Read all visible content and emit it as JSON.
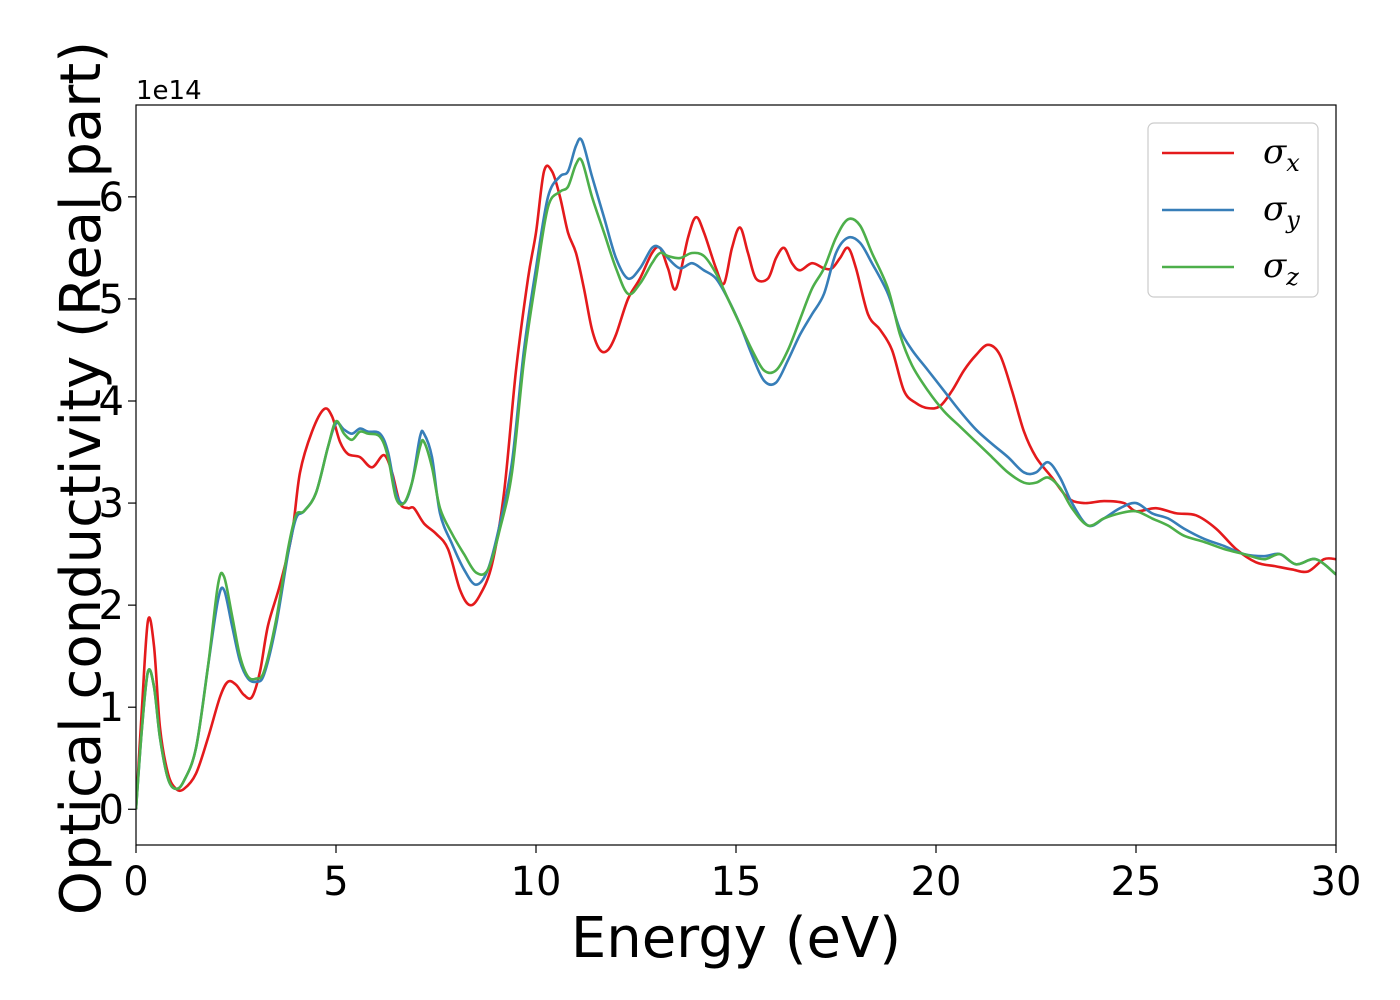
{
  "chart_data": {
    "type": "line",
    "xlabel": "Energy (eV)",
    "ylabel": "Optical conductivity (Real part)",
    "y_offset_text": "1e14",
    "xlim": [
      0,
      30
    ],
    "ylim": [
      -0.35,
      6.9
    ],
    "x_ticks": [
      0,
      5,
      10,
      15,
      20,
      25,
      30
    ],
    "y_ticks": [
      0,
      1,
      2,
      3,
      4,
      5,
      6
    ],
    "grid": false,
    "legend_position": "top-right",
    "series": [
      {
        "name": "σ_x",
        "symbol": "σ",
        "subscript": "x",
        "color": "#e41a1c",
        "points": [
          [
            0,
            0
          ],
          [
            0.15,
            1.0
          ],
          [
            0.3,
            1.85
          ],
          [
            0.45,
            1.6
          ],
          [
            0.6,
            0.8
          ],
          [
            0.8,
            0.35
          ],
          [
            1.0,
            0.2
          ],
          [
            1.2,
            0.2
          ],
          [
            1.5,
            0.35
          ],
          [
            1.8,
            0.7
          ],
          [
            2.1,
            1.1
          ],
          [
            2.3,
            1.25
          ],
          [
            2.5,
            1.22
          ],
          [
            2.7,
            1.12
          ],
          [
            2.9,
            1.1
          ],
          [
            3.1,
            1.35
          ],
          [
            3.3,
            1.8
          ],
          [
            3.6,
            2.2
          ],
          [
            3.9,
            2.7
          ],
          [
            4.1,
            3.3
          ],
          [
            4.4,
            3.7
          ],
          [
            4.7,
            3.92
          ],
          [
            4.9,
            3.85
          ],
          [
            5.1,
            3.6
          ],
          [
            5.3,
            3.48
          ],
          [
            5.6,
            3.45
          ],
          [
            5.9,
            3.35
          ],
          [
            6.2,
            3.47
          ],
          [
            6.4,
            3.3
          ],
          [
            6.6,
            3.0
          ],
          [
            6.8,
            2.95
          ],
          [
            6.95,
            2.95
          ],
          [
            7.2,
            2.8
          ],
          [
            7.5,
            2.7
          ],
          [
            7.8,
            2.55
          ],
          [
            8.1,
            2.15
          ],
          [
            8.35,
            2.0
          ],
          [
            8.6,
            2.1
          ],
          [
            8.9,
            2.4
          ],
          [
            9.2,
            3.1
          ],
          [
            9.5,
            4.3
          ],
          [
            9.8,
            5.2
          ],
          [
            10.0,
            5.65
          ],
          [
            10.2,
            6.25
          ],
          [
            10.4,
            6.25
          ],
          [
            10.6,
            6.0
          ],
          [
            10.8,
            5.65
          ],
          [
            11.0,
            5.45
          ],
          [
            11.2,
            5.1
          ],
          [
            11.4,
            4.7
          ],
          [
            11.6,
            4.5
          ],
          [
            11.8,
            4.5
          ],
          [
            12.0,
            4.65
          ],
          [
            12.3,
            5.0
          ],
          [
            12.6,
            5.2
          ],
          [
            12.9,
            5.45
          ],
          [
            13.1,
            5.5
          ],
          [
            13.3,
            5.3
          ],
          [
            13.5,
            5.1
          ],
          [
            13.8,
            5.6
          ],
          [
            14.0,
            5.8
          ],
          [
            14.2,
            5.65
          ],
          [
            14.5,
            5.3
          ],
          [
            14.7,
            5.15
          ],
          [
            14.9,
            5.5
          ],
          [
            15.1,
            5.7
          ],
          [
            15.3,
            5.45
          ],
          [
            15.5,
            5.2
          ],
          [
            15.8,
            5.2
          ],
          [
            16.0,
            5.4
          ],
          [
            16.2,
            5.5
          ],
          [
            16.4,
            5.35
          ],
          [
            16.6,
            5.28
          ],
          [
            16.9,
            5.35
          ],
          [
            17.2,
            5.3
          ],
          [
            17.4,
            5.3
          ],
          [
            17.6,
            5.4
          ],
          [
            17.8,
            5.5
          ],
          [
            18.0,
            5.3
          ],
          [
            18.3,
            4.85
          ],
          [
            18.6,
            4.7
          ],
          [
            18.9,
            4.5
          ],
          [
            19.2,
            4.1
          ],
          [
            19.5,
            3.98
          ],
          [
            19.8,
            3.93
          ],
          [
            20.1,
            3.95
          ],
          [
            20.4,
            4.1
          ],
          [
            20.7,
            4.3
          ],
          [
            21.0,
            4.45
          ],
          [
            21.3,
            4.55
          ],
          [
            21.6,
            4.45
          ],
          [
            21.9,
            4.1
          ],
          [
            22.2,
            3.7
          ],
          [
            22.5,
            3.45
          ],
          [
            22.9,
            3.25
          ],
          [
            23.3,
            3.05
          ],
          [
            23.7,
            3.0
          ],
          [
            24.2,
            3.02
          ],
          [
            24.7,
            3.0
          ],
          [
            25.0,
            2.92
          ],
          [
            25.5,
            2.95
          ],
          [
            26.0,
            2.9
          ],
          [
            26.5,
            2.88
          ],
          [
            27.0,
            2.75
          ],
          [
            27.5,
            2.55
          ],
          [
            28.0,
            2.42
          ],
          [
            28.5,
            2.38
          ],
          [
            28.9,
            2.35
          ],
          [
            29.3,
            2.33
          ],
          [
            29.7,
            2.45
          ],
          [
            30.0,
            2.45
          ]
        ]
      },
      {
        "name": "σ_y",
        "symbol": "σ",
        "subscript": "y",
        "color": "#377eb8",
        "points": [
          [
            0,
            0
          ],
          [
            0.15,
            0.8
          ],
          [
            0.3,
            1.35
          ],
          [
            0.45,
            1.2
          ],
          [
            0.6,
            0.7
          ],
          [
            0.8,
            0.3
          ],
          [
            1.0,
            0.2
          ],
          [
            1.2,
            0.28
          ],
          [
            1.5,
            0.6
          ],
          [
            1.8,
            1.4
          ],
          [
            2.05,
            2.05
          ],
          [
            2.2,
            2.15
          ],
          [
            2.4,
            1.8
          ],
          [
            2.6,
            1.45
          ],
          [
            2.8,
            1.28
          ],
          [
            3.0,
            1.25
          ],
          [
            3.2,
            1.32
          ],
          [
            3.5,
            1.8
          ],
          [
            3.8,
            2.5
          ],
          [
            4.0,
            2.85
          ],
          [
            4.2,
            2.92
          ],
          [
            4.5,
            3.1
          ],
          [
            4.8,
            3.55
          ],
          [
            5.0,
            3.78
          ],
          [
            5.2,
            3.72
          ],
          [
            5.4,
            3.68
          ],
          [
            5.6,
            3.73
          ],
          [
            5.8,
            3.7
          ],
          [
            6.1,
            3.68
          ],
          [
            6.3,
            3.5
          ],
          [
            6.5,
            3.1
          ],
          [
            6.7,
            3.0
          ],
          [
            6.9,
            3.2
          ],
          [
            7.1,
            3.65
          ],
          [
            7.2,
            3.68
          ],
          [
            7.4,
            3.45
          ],
          [
            7.6,
            2.9
          ],
          [
            7.9,
            2.6
          ],
          [
            8.2,
            2.35
          ],
          [
            8.5,
            2.2
          ],
          [
            8.8,
            2.35
          ],
          [
            9.1,
            2.8
          ],
          [
            9.4,
            3.4
          ],
          [
            9.7,
            4.5
          ],
          [
            10.0,
            5.3
          ],
          [
            10.3,
            6.0
          ],
          [
            10.6,
            6.2
          ],
          [
            10.8,
            6.25
          ],
          [
            11.0,
            6.5
          ],
          [
            11.15,
            6.55
          ],
          [
            11.4,
            6.2
          ],
          [
            11.7,
            5.8
          ],
          [
            12.0,
            5.4
          ],
          [
            12.3,
            5.2
          ],
          [
            12.6,
            5.3
          ],
          [
            12.9,
            5.5
          ],
          [
            13.1,
            5.5
          ],
          [
            13.3,
            5.4
          ],
          [
            13.6,
            5.3
          ],
          [
            13.9,
            5.35
          ],
          [
            14.2,
            5.28
          ],
          [
            14.5,
            5.2
          ],
          [
            14.8,
            5.0
          ],
          [
            15.1,
            4.75
          ],
          [
            15.4,
            4.45
          ],
          [
            15.7,
            4.2
          ],
          [
            16.0,
            4.18
          ],
          [
            16.3,
            4.4
          ],
          [
            16.6,
            4.65
          ],
          [
            16.9,
            4.85
          ],
          [
            17.2,
            5.05
          ],
          [
            17.5,
            5.45
          ],
          [
            17.8,
            5.6
          ],
          [
            18.1,
            5.55
          ],
          [
            18.4,
            5.35
          ],
          [
            18.8,
            5.05
          ],
          [
            19.1,
            4.7
          ],
          [
            19.4,
            4.5
          ],
          [
            19.8,
            4.3
          ],
          [
            20.2,
            4.1
          ],
          [
            20.6,
            3.9
          ],
          [
            21.0,
            3.72
          ],
          [
            21.4,
            3.58
          ],
          [
            21.8,
            3.45
          ],
          [
            22.2,
            3.3
          ],
          [
            22.5,
            3.3
          ],
          [
            22.8,
            3.4
          ],
          [
            23.1,
            3.25
          ],
          [
            23.4,
            3.0
          ],
          [
            23.8,
            2.78
          ],
          [
            24.2,
            2.85
          ],
          [
            24.6,
            2.95
          ],
          [
            25.0,
            3.0
          ],
          [
            25.4,
            2.9
          ],
          [
            25.8,
            2.85
          ],
          [
            26.2,
            2.75
          ],
          [
            26.7,
            2.65
          ],
          [
            27.2,
            2.58
          ],
          [
            27.7,
            2.5
          ],
          [
            28.2,
            2.48
          ],
          [
            28.6,
            2.5
          ],
          [
            29.0,
            2.4
          ],
          [
            29.5,
            2.45
          ],
          [
            30.0,
            2.3
          ]
        ]
      },
      {
        "name": "σ_z",
        "symbol": "σ",
        "subscript": "z",
        "color": "#4daf4a",
        "points": [
          [
            0,
            0
          ],
          [
            0.15,
            0.8
          ],
          [
            0.3,
            1.35
          ],
          [
            0.45,
            1.2
          ],
          [
            0.6,
            0.7
          ],
          [
            0.8,
            0.3
          ],
          [
            1.0,
            0.2
          ],
          [
            1.2,
            0.28
          ],
          [
            1.5,
            0.6
          ],
          [
            1.8,
            1.4
          ],
          [
            2.05,
            2.2
          ],
          [
            2.2,
            2.28
          ],
          [
            2.4,
            1.9
          ],
          [
            2.6,
            1.5
          ],
          [
            2.8,
            1.3
          ],
          [
            3.0,
            1.28
          ],
          [
            3.2,
            1.35
          ],
          [
            3.5,
            1.85
          ],
          [
            3.8,
            2.55
          ],
          [
            4.0,
            2.88
          ],
          [
            4.2,
            2.92
          ],
          [
            4.5,
            3.1
          ],
          [
            4.8,
            3.55
          ],
          [
            5.0,
            3.8
          ],
          [
            5.2,
            3.68
          ],
          [
            5.4,
            3.62
          ],
          [
            5.6,
            3.7
          ],
          [
            5.8,
            3.68
          ],
          [
            6.1,
            3.65
          ],
          [
            6.3,
            3.45
          ],
          [
            6.5,
            3.05
          ],
          [
            6.7,
            3.0
          ],
          [
            6.9,
            3.2
          ],
          [
            7.1,
            3.55
          ],
          [
            7.2,
            3.6
          ],
          [
            7.4,
            3.35
          ],
          [
            7.6,
            2.95
          ],
          [
            7.9,
            2.7
          ],
          [
            8.2,
            2.5
          ],
          [
            8.5,
            2.32
          ],
          [
            8.8,
            2.35
          ],
          [
            9.1,
            2.75
          ],
          [
            9.4,
            3.3
          ],
          [
            9.7,
            4.4
          ],
          [
            10.0,
            5.2
          ],
          [
            10.3,
            5.9
          ],
          [
            10.6,
            6.05
          ],
          [
            10.8,
            6.1
          ],
          [
            11.0,
            6.32
          ],
          [
            11.15,
            6.35
          ],
          [
            11.4,
            6.0
          ],
          [
            11.7,
            5.65
          ],
          [
            12.0,
            5.3
          ],
          [
            12.3,
            5.05
          ],
          [
            12.6,
            5.15
          ],
          [
            12.9,
            5.35
          ],
          [
            13.1,
            5.45
          ],
          [
            13.3,
            5.42
          ],
          [
            13.6,
            5.4
          ],
          [
            13.9,
            5.45
          ],
          [
            14.2,
            5.42
          ],
          [
            14.5,
            5.25
          ],
          [
            14.8,
            5.0
          ],
          [
            15.1,
            4.75
          ],
          [
            15.4,
            4.5
          ],
          [
            15.7,
            4.3
          ],
          [
            16.0,
            4.3
          ],
          [
            16.3,
            4.5
          ],
          [
            16.6,
            4.8
          ],
          [
            16.9,
            5.1
          ],
          [
            17.2,
            5.3
          ],
          [
            17.5,
            5.6
          ],
          [
            17.8,
            5.78
          ],
          [
            18.1,
            5.72
          ],
          [
            18.4,
            5.45
          ],
          [
            18.8,
            5.1
          ],
          [
            19.1,
            4.65
          ],
          [
            19.4,
            4.35
          ],
          [
            19.8,
            4.1
          ],
          [
            20.2,
            3.9
          ],
          [
            20.6,
            3.75
          ],
          [
            21.0,
            3.6
          ],
          [
            21.4,
            3.45
          ],
          [
            21.8,
            3.3
          ],
          [
            22.2,
            3.2
          ],
          [
            22.5,
            3.2
          ],
          [
            22.8,
            3.25
          ],
          [
            23.1,
            3.15
          ],
          [
            23.4,
            2.95
          ],
          [
            23.8,
            2.78
          ],
          [
            24.2,
            2.85
          ],
          [
            24.6,
            2.9
          ],
          [
            25.0,
            2.92
          ],
          [
            25.4,
            2.85
          ],
          [
            25.8,
            2.78
          ],
          [
            26.2,
            2.68
          ],
          [
            26.7,
            2.62
          ],
          [
            27.2,
            2.55
          ],
          [
            27.7,
            2.5
          ],
          [
            28.2,
            2.45
          ],
          [
            28.6,
            2.5
          ],
          [
            29.0,
            2.4
          ],
          [
            29.5,
            2.45
          ],
          [
            30.0,
            2.3
          ]
        ]
      }
    ]
  }
}
